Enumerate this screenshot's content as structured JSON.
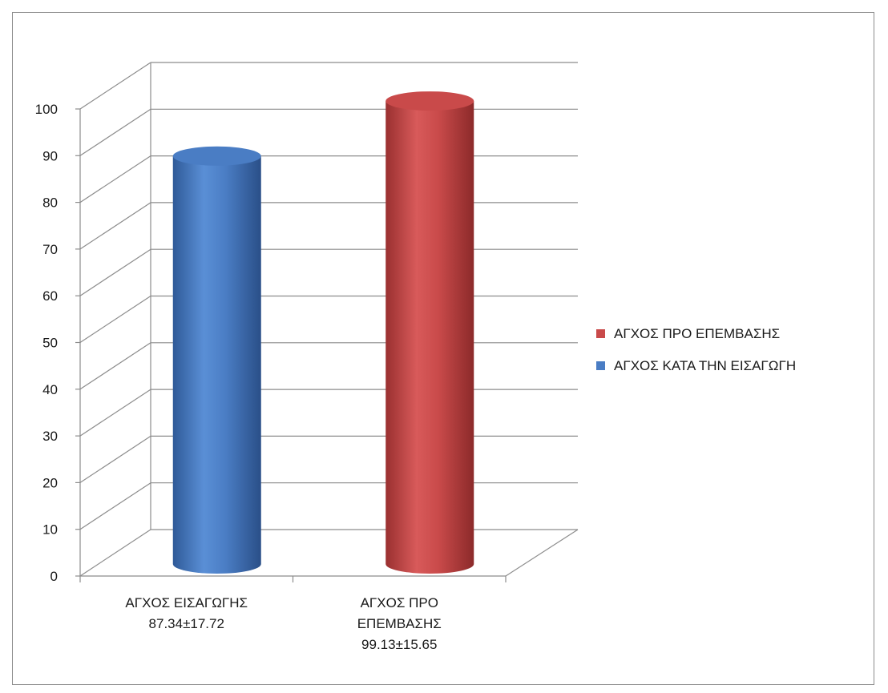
{
  "chart_data": {
    "type": "bar",
    "style": "3d-cylinder",
    "categories": [
      [
        "ΑΓΧΟΣ ΕΙΣΑΓΩΓΗΣ",
        "87.34±17.72"
      ],
      [
        "ΑΓΧΟΣ ΠΡΟ",
        "ΕΠΕΜΒΑΣΗΣ",
        "99.13±15.65"
      ]
    ],
    "series": [
      {
        "name": "ΑΓΧΟΣ ΚΑΤΑ ΤΗΝ ΕΙΣΑΓΩΓΗ",
        "color": "#4a7dc4",
        "values": [
          87.34,
          null
        ]
      },
      {
        "name": "ΑΓΧΟΣ ΠΡΟ ΕΠΕΜΒΑΣΗΣ",
        "color": "#c94a4a",
        "values": [
          null,
          99.13
        ]
      }
    ],
    "ylim": [
      0,
      100
    ],
    "yticks": [
      "0",
      "10",
      "20",
      "30",
      "40",
      "50",
      "60",
      "70",
      "80",
      "90",
      "100"
    ],
    "grid": true,
    "legend_position": "right",
    "legend_order": [
      "ΑΓΧΟΣ ΠΡΟ ΕΠΕΜΒΑΣΗΣ",
      "ΑΓΧΟΣ ΚΑΤΑ ΤΗΝ ΕΙΣΑΓΩΓΗ"
    ]
  }
}
